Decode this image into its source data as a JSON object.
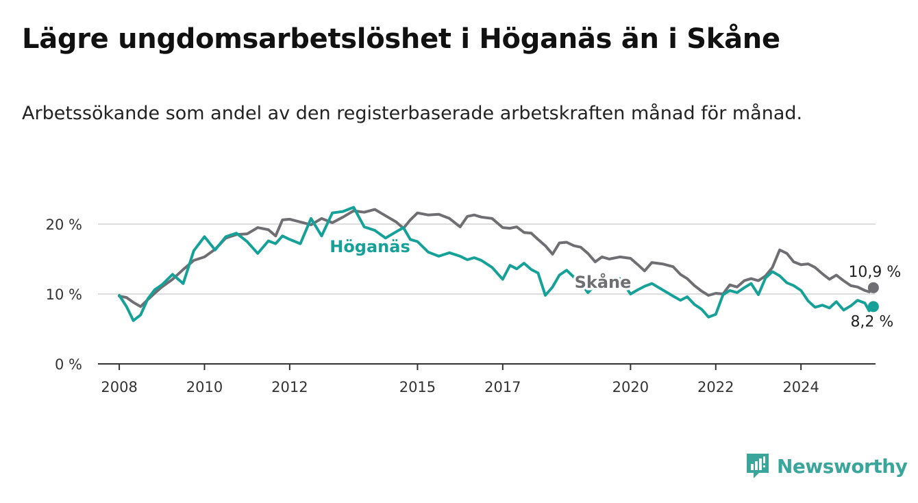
{
  "header": {
    "title": "Lägre ungdomsarbetslöshet i Höganäs än i Skåne",
    "subtitle": "Arbetssökande som andel av den registerbaserade arbetskraften månad för månad."
  },
  "brand": {
    "name": "Newsworthy",
    "color": "#3aa59b"
  },
  "chart_data": {
    "type": "line",
    "title": "Lägre ungdomsarbetslöshet i Höganäs än i Skåne",
    "xlabel": "",
    "ylabel": "",
    "xlim": [
      2007.5,
      2025.75
    ],
    "ylim": [
      0,
      22.5
    ],
    "y_ticks": [
      0,
      10,
      20
    ],
    "y_tick_labels": [
      "0 %",
      "10 %",
      "20 %"
    ],
    "x_ticks": [
      2008,
      2010,
      2012,
      2015,
      2017,
      2020,
      2022,
      2024
    ],
    "x_tick_labels": [
      "2008",
      "2010",
      "2012",
      "2015",
      "2017",
      "2020",
      "2022",
      "2024"
    ],
    "grid": true,
    "series": [
      {
        "name": "Skåne",
        "color": "#6e6e73",
        "label": "Skåne",
        "end_label": "10,9 %",
        "points": [
          [
            2008.0,
            9.7
          ],
          [
            2008.17,
            9.5
          ],
          [
            2008.33,
            8.8
          ],
          [
            2008.5,
            8.2
          ],
          [
            2008.67,
            9.2
          ],
          [
            2008.83,
            10.1
          ],
          [
            2009.0,
            11.0
          ],
          [
            2009.25,
            12.1
          ],
          [
            2009.5,
            13.5
          ],
          [
            2009.75,
            14.8
          ],
          [
            2010.0,
            15.3
          ],
          [
            2010.25,
            16.4
          ],
          [
            2010.5,
            18.0
          ],
          [
            2010.75,
            18.5
          ],
          [
            2011.0,
            18.6
          ],
          [
            2011.25,
            19.5
          ],
          [
            2011.5,
            19.2
          ],
          [
            2011.67,
            18.3
          ],
          [
            2011.83,
            20.6
          ],
          [
            2012.0,
            20.7
          ],
          [
            2012.25,
            20.3
          ],
          [
            2012.5,
            19.9
          ],
          [
            2012.75,
            20.8
          ],
          [
            2013.0,
            20.2
          ],
          [
            2013.25,
            21.0
          ],
          [
            2013.5,
            21.9
          ],
          [
            2013.75,
            21.7
          ],
          [
            2014.0,
            22.1
          ],
          [
            2014.25,
            21.2
          ],
          [
            2014.5,
            20.3
          ],
          [
            2014.67,
            19.4
          ],
          [
            2014.83,
            20.6
          ],
          [
            2015.0,
            21.6
          ],
          [
            2015.25,
            21.3
          ],
          [
            2015.5,
            21.4
          ],
          [
            2015.75,
            20.8
          ],
          [
            2016.0,
            19.6
          ],
          [
            2016.17,
            21.1
          ],
          [
            2016.33,
            21.3
          ],
          [
            2016.5,
            21.0
          ],
          [
            2016.75,
            20.8
          ],
          [
            2017.0,
            19.5
          ],
          [
            2017.17,
            19.4
          ],
          [
            2017.33,
            19.6
          ],
          [
            2017.5,
            18.8
          ],
          [
            2017.67,
            18.7
          ],
          [
            2017.83,
            17.8
          ],
          [
            2018.0,
            16.9
          ],
          [
            2018.17,
            15.7
          ],
          [
            2018.33,
            17.3
          ],
          [
            2018.5,
            17.4
          ],
          [
            2018.67,
            16.9
          ],
          [
            2018.83,
            16.7
          ],
          [
            2019.0,
            15.8
          ],
          [
            2019.17,
            14.6
          ],
          [
            2019.33,
            15.3
          ],
          [
            2019.5,
            15.0
          ],
          [
            2019.75,
            15.3
          ],
          [
            2020.0,
            15.1
          ],
          [
            2020.17,
            14.2
          ],
          [
            2020.33,
            13.3
          ],
          [
            2020.5,
            14.5
          ],
          [
            2020.75,
            14.3
          ],
          [
            2021.0,
            13.9
          ],
          [
            2021.17,
            12.8
          ],
          [
            2021.33,
            12.2
          ],
          [
            2021.5,
            11.2
          ],
          [
            2021.67,
            10.4
          ],
          [
            2021.83,
            9.8
          ],
          [
            2022.0,
            10.1
          ],
          [
            2022.17,
            10.0
          ],
          [
            2022.33,
            11.3
          ],
          [
            2022.5,
            11.0
          ],
          [
            2022.67,
            11.9
          ],
          [
            2022.83,
            12.2
          ],
          [
            2023.0,
            11.9
          ],
          [
            2023.17,
            12.6
          ],
          [
            2023.33,
            13.8
          ],
          [
            2023.5,
            16.3
          ],
          [
            2023.67,
            15.8
          ],
          [
            2023.83,
            14.6
          ],
          [
            2024.0,
            14.2
          ],
          [
            2024.17,
            14.3
          ],
          [
            2024.33,
            13.8
          ],
          [
            2024.5,
            12.9
          ],
          [
            2024.67,
            12.1
          ],
          [
            2024.83,
            12.7
          ],
          [
            2025.0,
            11.9
          ],
          [
            2025.17,
            11.2
          ],
          [
            2025.33,
            11.0
          ],
          [
            2025.5,
            10.5
          ],
          [
            2025.6,
            10.3
          ],
          [
            2025.7,
            10.9
          ]
        ]
      },
      {
        "name": "Höganäs",
        "color": "#16a198",
        "label": "Höganäs",
        "end_label": "8,2 %",
        "points": [
          [
            2008.0,
            9.8
          ],
          [
            2008.17,
            8.2
          ],
          [
            2008.33,
            6.2
          ],
          [
            2008.5,
            7.0
          ],
          [
            2008.67,
            9.3
          ],
          [
            2008.83,
            10.6
          ],
          [
            2009.0,
            11.3
          ],
          [
            2009.25,
            12.8
          ],
          [
            2009.5,
            11.5
          ],
          [
            2009.75,
            16.2
          ],
          [
            2010.0,
            18.2
          ],
          [
            2010.25,
            16.3
          ],
          [
            2010.5,
            18.2
          ],
          [
            2010.75,
            18.7
          ],
          [
            2011.0,
            17.5
          ],
          [
            2011.25,
            15.8
          ],
          [
            2011.5,
            17.6
          ],
          [
            2011.67,
            17.2
          ],
          [
            2011.83,
            18.3
          ],
          [
            2012.0,
            17.8
          ],
          [
            2012.25,
            17.2
          ],
          [
            2012.5,
            20.8
          ],
          [
            2012.75,
            18.3
          ],
          [
            2013.0,
            21.6
          ],
          [
            2013.25,
            21.8
          ],
          [
            2013.5,
            22.4
          ],
          [
            2013.75,
            19.6
          ],
          [
            2014.0,
            19.1
          ],
          [
            2014.25,
            18.0
          ],
          [
            2014.5,
            18.9
          ],
          [
            2014.67,
            19.5
          ],
          [
            2014.83,
            17.8
          ],
          [
            2015.0,
            17.5
          ],
          [
            2015.25,
            16.0
          ],
          [
            2015.5,
            15.4
          ],
          [
            2015.75,
            15.9
          ],
          [
            2016.0,
            15.4
          ],
          [
            2016.17,
            14.9
          ],
          [
            2016.33,
            15.2
          ],
          [
            2016.5,
            14.8
          ],
          [
            2016.75,
            13.8
          ],
          [
            2017.0,
            12.1
          ],
          [
            2017.17,
            14.1
          ],
          [
            2017.33,
            13.6
          ],
          [
            2017.5,
            14.4
          ],
          [
            2017.67,
            13.5
          ],
          [
            2017.83,
            13.0
          ],
          [
            2018.0,
            9.8
          ],
          [
            2018.17,
            11.0
          ],
          [
            2018.33,
            12.7
          ],
          [
            2018.5,
            13.4
          ],
          [
            2018.67,
            12.4
          ],
          [
            2018.83,
            11.6
          ],
          [
            2019.0,
            10.2
          ],
          [
            2019.17,
            11.3
          ],
          [
            2019.33,
            11.5
          ],
          [
            2019.5,
            11.2
          ],
          [
            2019.75,
            12.2
          ],
          [
            2020.0,
            10.0
          ],
          [
            2020.17,
            10.6
          ],
          [
            2020.33,
            11.1
          ],
          [
            2020.5,
            11.5
          ],
          [
            2020.75,
            10.6
          ],
          [
            2021.0,
            9.7
          ],
          [
            2021.17,
            9.1
          ],
          [
            2021.33,
            9.6
          ],
          [
            2021.5,
            8.5
          ],
          [
            2021.67,
            7.8
          ],
          [
            2021.83,
            6.7
          ],
          [
            2022.0,
            7.1
          ],
          [
            2022.17,
            9.9
          ],
          [
            2022.33,
            10.5
          ],
          [
            2022.5,
            10.2
          ],
          [
            2022.67,
            10.9
          ],
          [
            2022.83,
            11.5
          ],
          [
            2023.0,
            9.9
          ],
          [
            2023.17,
            12.3
          ],
          [
            2023.33,
            13.2
          ],
          [
            2023.5,
            12.6
          ],
          [
            2023.67,
            11.6
          ],
          [
            2023.83,
            11.2
          ],
          [
            2024.0,
            10.5
          ],
          [
            2024.17,
            9.0
          ],
          [
            2024.33,
            8.1
          ],
          [
            2024.5,
            8.4
          ],
          [
            2024.67,
            8.0
          ],
          [
            2024.83,
            8.9
          ],
          [
            2025.0,
            7.7
          ],
          [
            2025.17,
            8.3
          ],
          [
            2025.33,
            9.1
          ],
          [
            2025.5,
            8.7
          ],
          [
            2025.6,
            7.6
          ],
          [
            2025.7,
            8.2
          ]
        ]
      }
    ]
  }
}
